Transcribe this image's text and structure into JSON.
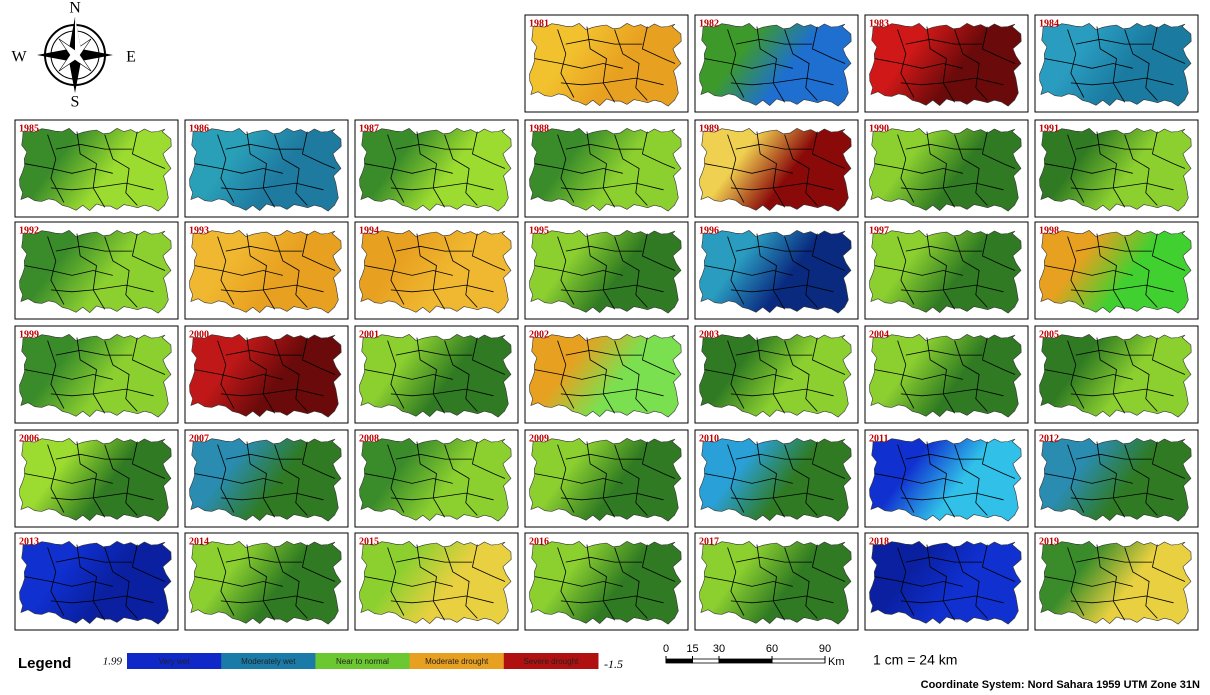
{
  "compass": {
    "n": "N",
    "s": "S",
    "e": "E",
    "w": "W"
  },
  "maps": [
    {
      "year": "1981",
      "colors": [
        "#f2c12e",
        "#e8a020"
      ]
    },
    {
      "year": "1982",
      "colors": [
        "#3d9a2a",
        "#1e6fd0"
      ]
    },
    {
      "year": "1983",
      "colors": [
        "#d01818",
        "#6a0a0a"
      ]
    },
    {
      "year": "1984",
      "colors": [
        "#2a9cc0",
        "#1a7aa0"
      ]
    },
    {
      "year": "1985",
      "colors": [
        "#3a8c2a",
        "#9cdc30"
      ]
    },
    {
      "year": "1986",
      "colors": [
        "#2aa0b8",
        "#1f7aa0"
      ]
    },
    {
      "year": "1987",
      "colors": [
        "#3a8c2a",
        "#9cdc30"
      ]
    },
    {
      "year": "1988",
      "colors": [
        "#3a8c2a",
        "#8cd030"
      ]
    },
    {
      "year": "1989",
      "colors": [
        "#f0d050",
        "#8a0a0a"
      ]
    },
    {
      "year": "1990",
      "colors": [
        "#8cd030",
        "#2f7a22"
      ]
    },
    {
      "year": "1991",
      "colors": [
        "#2f7a22",
        "#8cd030"
      ]
    },
    {
      "year": "1992",
      "colors": [
        "#3a8c2a",
        "#8cd030"
      ]
    },
    {
      "year": "1993",
      "colors": [
        "#f0b830",
        "#e8a020"
      ]
    },
    {
      "year": "1994",
      "colors": [
        "#e8a020",
        "#f0b830"
      ]
    },
    {
      "year": "1995",
      "colors": [
        "#8cd030",
        "#2f7a22"
      ]
    },
    {
      "year": "1996",
      "colors": [
        "#2a9cc0",
        "#0a2a80"
      ]
    },
    {
      "year": "1997",
      "colors": [
        "#8cd030",
        "#2f7a22"
      ]
    },
    {
      "year": "1998",
      "colors": [
        "#e8a020",
        "#40d030"
      ]
    },
    {
      "year": "1999",
      "colors": [
        "#3a8c2a",
        "#8cd030"
      ]
    },
    {
      "year": "2000",
      "colors": [
        "#c01818",
        "#6a0a0a"
      ]
    },
    {
      "year": "2001",
      "colors": [
        "#8cd030",
        "#2f7a22"
      ]
    },
    {
      "year": "2002",
      "colors": [
        "#e8a020",
        "#7ae050"
      ]
    },
    {
      "year": "2003",
      "colors": [
        "#2f7a22",
        "#8cd030"
      ]
    },
    {
      "year": "2004",
      "colors": [
        "#8cd030",
        "#2f7a22"
      ]
    },
    {
      "year": "2005",
      "colors": [
        "#2f7a22",
        "#8cd030"
      ]
    },
    {
      "year": "2006",
      "colors": [
        "#9cdc30",
        "#2f7a22"
      ]
    },
    {
      "year": "2007",
      "colors": [
        "#2a8cb0",
        "#2f7a22"
      ]
    },
    {
      "year": "2008",
      "colors": [
        "#3a8c2a",
        "#8cd030"
      ]
    },
    {
      "year": "2009",
      "colors": [
        "#8cd030",
        "#2f7a22"
      ]
    },
    {
      "year": "2010",
      "colors": [
        "#2aa0d8",
        "#2f7a22"
      ]
    },
    {
      "year": "2011",
      "colors": [
        "#1030d0",
        "#30c0e8"
      ]
    },
    {
      "year": "2012",
      "colors": [
        "#2a8cb0",
        "#2f7a22"
      ]
    },
    {
      "year": "2013",
      "colors": [
        "#1030d0",
        "#0a20a0"
      ]
    },
    {
      "year": "2014",
      "colors": [
        "#8cd030",
        "#2f7a22"
      ]
    },
    {
      "year": "2015",
      "colors": [
        "#8cd030",
        "#e8d040"
      ]
    },
    {
      "year": "2016",
      "colors": [
        "#8cd030",
        "#2f7a22"
      ]
    },
    {
      "year": "2017",
      "colors": [
        "#8cd030",
        "#2f7a22"
      ]
    },
    {
      "year": "2018",
      "colors": [
        "#0a20a0",
        "#1030d0"
      ]
    },
    {
      "year": "2019",
      "colors": [
        "#3a8c2a",
        "#e8d040"
      ]
    }
  ],
  "legend": {
    "title": "Legend",
    "max": 1.99,
    "min": -1.5,
    "classes": [
      {
        "name": "Very wet",
        "color": "#1028c8"
      },
      {
        "name": "Moderately wet",
        "color": "#1a7aa8"
      },
      {
        "name": "Near to normal",
        "color": "#6cc830"
      },
      {
        "name": "Moderate drought",
        "color": "#e8a020"
      },
      {
        "name": "Severe drought",
        "color": "#b01010"
      }
    ]
  },
  "scale": {
    "ticks": [
      0,
      15,
      30,
      60,
      90
    ],
    "unit": "Km",
    "ratio": "1 cm = 24 km"
  },
  "coordinate_system": "Coordinate System: Nord Sahara 1959 UTM Zone 31N"
}
